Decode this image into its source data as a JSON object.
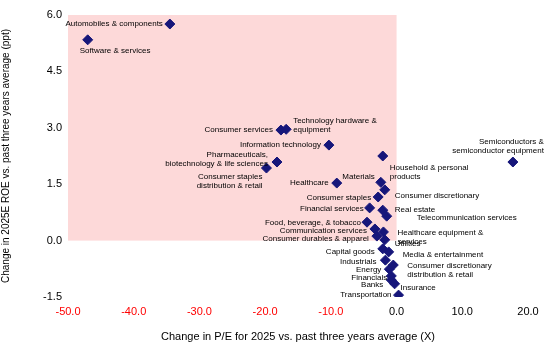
{
  "chart_data": {
    "type": "scatter",
    "x_label": "Change in P/E for 2025 vs. past three years average (X)",
    "y_label": "Change in 2025E ROE vs. past three years average (ppt)",
    "point_labels": [
      "Automobiles & components",
      "Software & services",
      "Consumer services",
      "Technology hardware & equipment",
      "Information technology",
      "Pharmaceuticals, biotechnology & life sciences",
      "Consumer staples distribution & retail",
      "Healthcare",
      "Materials",
      "Household & personal products",
      "Consumer staples",
      "Consumer discretionary",
      "Financial services",
      "Real estate",
      "Food, beverage, & tobacco",
      "Telecommunication services",
      "Communication services",
      "Healthcare equipment & services",
      "Consumer durables & apparel",
      "Utilities",
      "Capital goods",
      "Media & entertainment",
      "Industrials",
      "Consumer discretionary distribution & retail",
      "Energy",
      "Financials",
      "Banks",
      "Insurance",
      "Transportation",
      "Semiconductors & semiconductor equipment"
    ],
    "x": [
      -34.5,
      -47.0,
      -17.6,
      -16.8,
      -10.3,
      -18.2,
      -19.8,
      -9.1,
      -2.4,
      -2.1,
      -2.8,
      -1.8,
      -4.1,
      -2.1,
      -4.5,
      -1.5,
      -3.3,
      -2.0,
      -3.0,
      -1.8,
      -2.1,
      -1.2,
      -1.7,
      -0.5,
      -1.1,
      -0.8,
      -0.8,
      -0.3,
      0.3,
      17.7
    ],
    "values": [
      5.76,
      5.34,
      2.94,
      2.96,
      2.54,
      2.09,
      1.93,
      1.53,
      1.55,
      2.25,
      1.16,
      1.35,
      0.87,
      0.81,
      0.49,
      0.65,
      0.31,
      0.23,
      0.12,
      0.02,
      -0.22,
      -0.3,
      -0.52,
      -0.65,
      -0.76,
      -0.94,
      -1.05,
      -1.15,
      -1.45,
      2.09
    ],
    "color": "#16167a",
    "marker": "diamond",
    "grid": false,
    "xlim": [
      -50,
      20
    ],
    "xticks": [
      {
        "value": -50,
        "label": "-50.0"
      },
      {
        "value": -40,
        "label": "-40.0"
      },
      {
        "value": -30,
        "label": "-30.0"
      },
      {
        "value": -20,
        "label": "-20.0"
      },
      {
        "value": -10,
        "label": "-10.0"
      },
      {
        "value": 0,
        "label": "0.0"
      },
      {
        "value": 10,
        "label": "10.0"
      },
      {
        "value": 20,
        "label": "20.0"
      }
    ],
    "ylim": [
      -1.5,
      6
    ],
    "yticks": [
      -1.5,
      {
        "value": 0,
        "label": "0.0"
      },
      1.5,
      {
        "value": 3,
        "label": "3.0"
      },
      4.5,
      {
        "value": 6,
        "label": "6.0"
      }
    ],
    "shaded_area": {
      "xlim": [
        -50,
        0
      ],
      "ylim": [
        0,
        6
      ],
      "color": "#fdd9d9"
    }
  }
}
